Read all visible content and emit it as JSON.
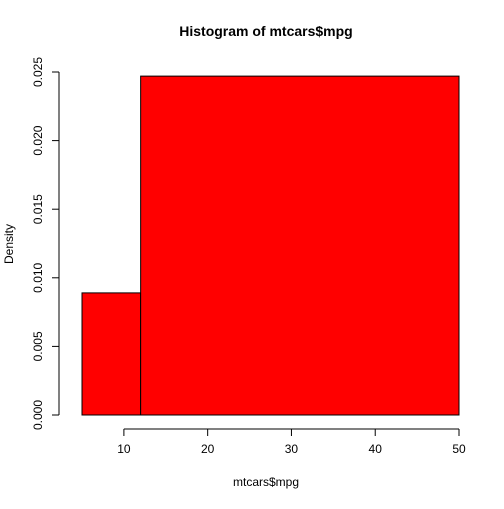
{
  "chart_data": {
    "type": "bar",
    "title": "Histogram of mtcars$mpg",
    "xlabel": "mtcars$mpg",
    "ylabel": "Density",
    "bins": [
      {
        "x0": 5,
        "x1": 12,
        "density": 0.0089
      },
      {
        "x0": 12,
        "x1": 50,
        "density": 0.0247
      }
    ],
    "xlim": [
      5,
      50
    ],
    "ylim": [
      0,
      0.025
    ],
    "xticks": [
      {
        "value": 10,
        "label": "10"
      },
      {
        "value": 20,
        "label": "20"
      },
      {
        "value": 30,
        "label": "30"
      },
      {
        "value": 40,
        "label": "40"
      },
      {
        "value": 50,
        "label": "50"
      }
    ],
    "yticks": [
      {
        "value": 0,
        "label": "0.000"
      },
      {
        "value": 0.005,
        "label": "0.005"
      },
      {
        "value": 0.01,
        "label": "0.010"
      },
      {
        "value": 0.015,
        "label": "0.015"
      },
      {
        "value": 0.02,
        "label": "0.020"
      },
      {
        "value": 0.025,
        "label": "0.025"
      }
    ],
    "grid": false,
    "colors": {
      "bar_fill": "#ff0000",
      "bar_stroke": "#000000",
      "axis": "#000000"
    }
  }
}
